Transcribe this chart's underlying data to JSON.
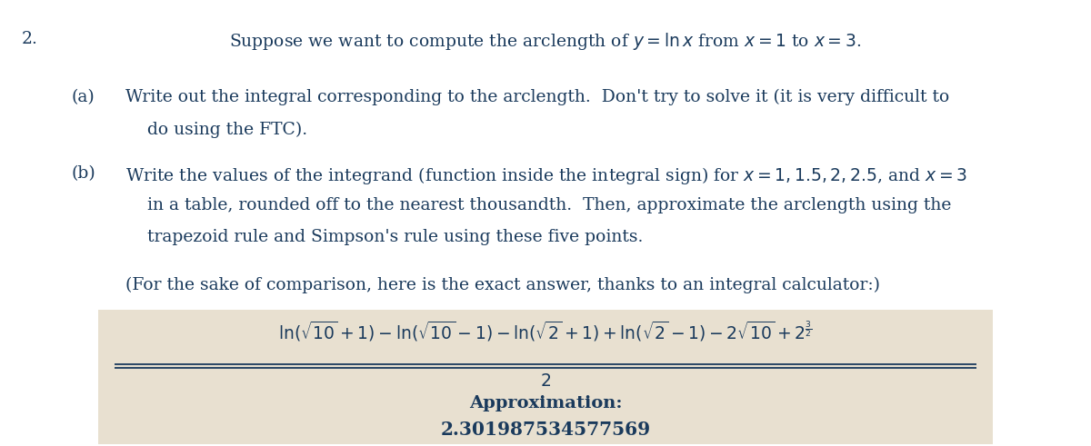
{
  "background_color": "#ffffff",
  "box_color": "#e8e0d0",
  "text_color": "#1a3a5c",
  "problem_number": "2.",
  "title_line": "Suppose we want to compute the arclength of $y = \\ln x$ from $x = 1$ to $x = 3$.",
  "part_a_label": "(a)",
  "part_a_line1": "Write out the integral corresponding to the arclength.  Don't try to solve it (it is very difficult to",
  "part_a_line2": "do using the FTC).",
  "part_b_label": "(b)",
  "part_b_line1": "Write the values of the integrand (function inside the integral sign) for $x = 1, 1.5, 2, 2.5$, and $x = 3$",
  "part_b_line2": "in a table, rounded off to the nearest thousandth.  Then, approximate the arclength using the",
  "part_b_line3": "trapezoid rule and Simpson's rule using these five points.",
  "comparison_text": "(For the sake of comparison, here is the exact answer, thanks to an integral calculator:)",
  "approx_label": "Approximation:",
  "approx_value": "2.301987534577569",
  "font_size_main": 13.5,
  "font_size_formula": 13.5,
  "font_size_approx_label": 14,
  "font_size_approx_value": 14.5,
  "indent_label": 0.065,
  "indent_text": 0.115,
  "indent_text2": 0.135
}
